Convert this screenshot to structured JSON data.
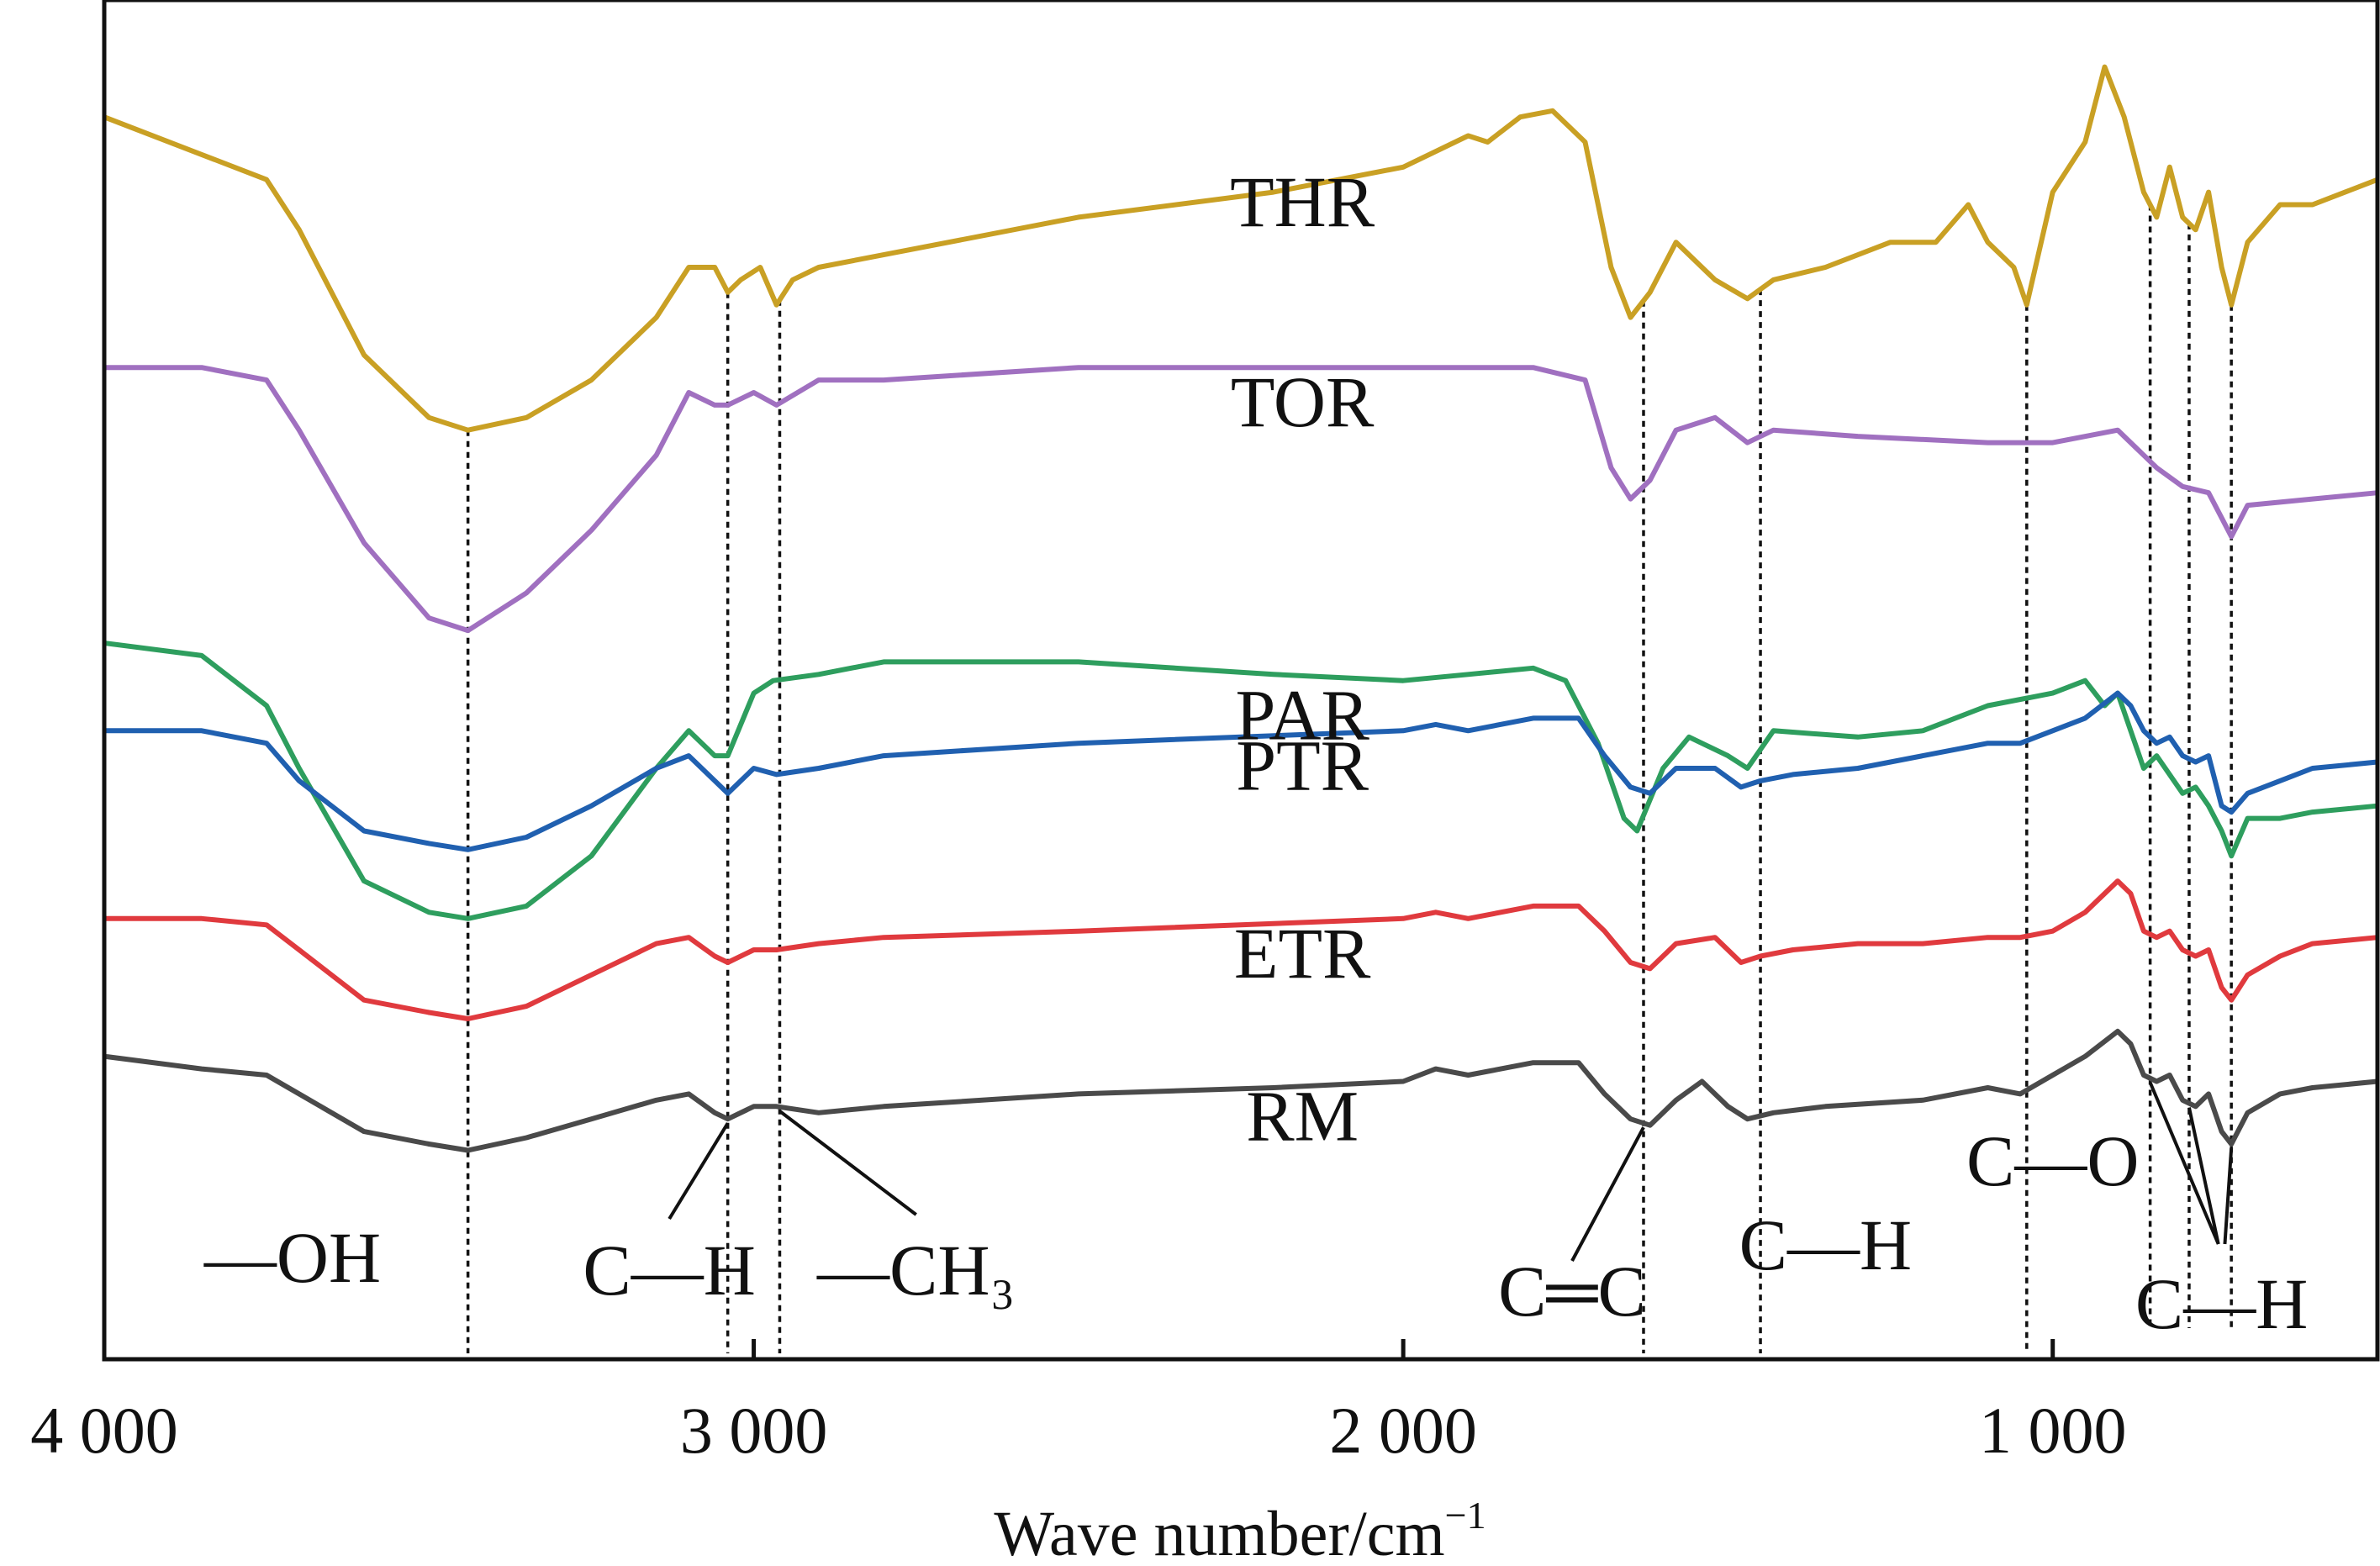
{
  "chart_data": {
    "type": "line",
    "title": "",
    "xlabel": "Wave number/cm",
    "xlabel_sup": "−1",
    "ylabel": "",
    "xlim": [
      4000,
      500
    ],
    "x_reversed": true,
    "y_axis_ticks_shown": false,
    "grid": false,
    "legend": "none — series names printed next to each curve",
    "x_ticks": [
      {
        "value": 4000,
        "label": "4 000"
      },
      {
        "value": 3000,
        "label": "3 000"
      },
      {
        "value": 2000,
        "label": "2 000"
      },
      {
        "value": 1000,
        "label": "1 000"
      }
    ],
    "series": [
      {
        "name": "THR",
        "color": "#C9A024",
        "points": [
          [
            4000,
            0.92
          ],
          [
            3850,
            0.89
          ],
          [
            3750,
            0.87
          ],
          [
            3700,
            0.83
          ],
          [
            3600,
            0.73
          ],
          [
            3500,
            0.68
          ],
          [
            3440,
            0.67
          ],
          [
            3350,
            0.68
          ],
          [
            3250,
            0.71
          ],
          [
            3150,
            0.76
          ],
          [
            3100,
            0.8
          ],
          [
            3060,
            0.8
          ],
          [
            3040,
            0.78
          ],
          [
            3020,
            0.79
          ],
          [
            2990,
            0.8
          ],
          [
            2965,
            0.77
          ],
          [
            2940,
            0.79
          ],
          [
            2900,
            0.8
          ],
          [
            2800,
            0.81
          ],
          [
            2500,
            0.84
          ],
          [
            2200,
            0.86
          ],
          [
            2000,
            0.88
          ],
          [
            1900,
            0.905
          ],
          [
            1870,
            0.9
          ],
          [
            1820,
            0.92
          ],
          [
            1770,
            0.925
          ],
          [
            1720,
            0.9
          ],
          [
            1680,
            0.8
          ],
          [
            1650,
            0.76
          ],
          [
            1620,
            0.78
          ],
          [
            1580,
            0.82
          ],
          [
            1520,
            0.79
          ],
          [
            1470,
            0.775
          ],
          [
            1430,
            0.79
          ],
          [
            1350,
            0.8
          ],
          [
            1250,
            0.82
          ],
          [
            1180,
            0.82
          ],
          [
            1130,
            0.85
          ],
          [
            1100,
            0.82
          ],
          [
            1060,
            0.8
          ],
          [
            1040,
            0.77
          ],
          [
            1000,
            0.86
          ],
          [
            950,
            0.9
          ],
          [
            920,
            0.96
          ],
          [
            890,
            0.92
          ],
          [
            860,
            0.86
          ],
          [
            840,
            0.84
          ],
          [
            820,
            0.88
          ],
          [
            800,
            0.84
          ],
          [
            780,
            0.83
          ],
          [
            760,
            0.86
          ],
          [
            740,
            0.8
          ],
          [
            725,
            0.77
          ],
          [
            700,
            0.82
          ],
          [
            650,
            0.85
          ],
          [
            600,
            0.85
          ],
          [
            550,
            0.86
          ],
          [
            500,
            0.87
          ]
        ]
      },
      {
        "name": "TOR",
        "color": "#A070C0",
        "points": [
          [
            4000,
            0.72
          ],
          [
            3850,
            0.72
          ],
          [
            3750,
            0.71
          ],
          [
            3700,
            0.67
          ],
          [
            3600,
            0.58
          ],
          [
            3500,
            0.52
          ],
          [
            3440,
            0.51
          ],
          [
            3350,
            0.54
          ],
          [
            3250,
            0.59
          ],
          [
            3150,
            0.65
          ],
          [
            3100,
            0.7
          ],
          [
            3060,
            0.69
          ],
          [
            3040,
            0.69
          ],
          [
            3000,
            0.7
          ],
          [
            2965,
            0.69
          ],
          [
            2900,
            0.71
          ],
          [
            2800,
            0.71
          ],
          [
            2500,
            0.72
          ],
          [
            2000,
            0.72
          ],
          [
            1800,
            0.72
          ],
          [
            1720,
            0.71
          ],
          [
            1680,
            0.64
          ],
          [
            1650,
            0.615
          ],
          [
            1620,
            0.63
          ],
          [
            1580,
            0.67
          ],
          [
            1520,
            0.68
          ],
          [
            1470,
            0.66
          ],
          [
            1430,
            0.67
          ],
          [
            1300,
            0.665
          ],
          [
            1100,
            0.66
          ],
          [
            1000,
            0.66
          ],
          [
            900,
            0.67
          ],
          [
            860,
            0.65
          ],
          [
            840,
            0.64
          ],
          [
            800,
            0.625
          ],
          [
            760,
            0.62
          ],
          [
            740,
            0.6
          ],
          [
            725,
            0.585
          ],
          [
            700,
            0.61
          ],
          [
            600,
            0.615
          ],
          [
            500,
            0.62
          ]
        ]
      },
      {
        "name": "PAR",
        "color": "#2E9E5E",
        "points": [
          [
            4000,
            0.5
          ],
          [
            3850,
            0.49
          ],
          [
            3750,
            0.45
          ],
          [
            3700,
            0.4
          ],
          [
            3600,
            0.31
          ],
          [
            3500,
            0.285
          ],
          [
            3440,
            0.28
          ],
          [
            3350,
            0.29
          ],
          [
            3250,
            0.33
          ],
          [
            3150,
            0.4
          ],
          [
            3100,
            0.43
          ],
          [
            3060,
            0.41
          ],
          [
            3040,
            0.41
          ],
          [
            3000,
            0.46
          ],
          [
            2970,
            0.47
          ],
          [
            2900,
            0.475
          ],
          [
            2800,
            0.485
          ],
          [
            2500,
            0.485
          ],
          [
            2200,
            0.475
          ],
          [
            2000,
            0.47
          ],
          [
            1900,
            0.475
          ],
          [
            1800,
            0.48
          ],
          [
            1750,
            0.47
          ],
          [
            1700,
            0.42
          ],
          [
            1660,
            0.36
          ],
          [
            1640,
            0.35
          ],
          [
            1600,
            0.4
          ],
          [
            1560,
            0.425
          ],
          [
            1500,
            0.41
          ],
          [
            1470,
            0.4
          ],
          [
            1430,
            0.43
          ],
          [
            1300,
            0.425
          ],
          [
            1200,
            0.43
          ],
          [
            1100,
            0.45
          ],
          [
            1000,
            0.46
          ],
          [
            950,
            0.47
          ],
          [
            920,
            0.45
          ],
          [
            900,
            0.46
          ],
          [
            860,
            0.4
          ],
          [
            840,
            0.41
          ],
          [
            800,
            0.38
          ],
          [
            780,
            0.385
          ],
          [
            760,
            0.37
          ],
          [
            740,
            0.35
          ],
          [
            725,
            0.33
          ],
          [
            700,
            0.36
          ],
          [
            650,
            0.36
          ],
          [
            600,
            0.365
          ],
          [
            500,
            0.37
          ]
        ]
      },
      {
        "name": "PTR",
        "color": "#2060B0",
        "points": [
          [
            4000,
            0.43
          ],
          [
            3850,
            0.43
          ],
          [
            3750,
            0.42
          ],
          [
            3700,
            0.39
          ],
          [
            3600,
            0.35
          ],
          [
            3500,
            0.34
          ],
          [
            3440,
            0.335
          ],
          [
            3350,
            0.345
          ],
          [
            3250,
            0.37
          ],
          [
            3150,
            0.4
          ],
          [
            3100,
            0.41
          ],
          [
            3060,
            0.39
          ],
          [
            3040,
            0.38
          ],
          [
            3000,
            0.4
          ],
          [
            2965,
            0.395
          ],
          [
            2900,
            0.4
          ],
          [
            2800,
            0.41
          ],
          [
            2500,
            0.42
          ],
          [
            2000,
            0.43
          ],
          [
            1950,
            0.435
          ],
          [
            1900,
            0.43
          ],
          [
            1800,
            0.44
          ],
          [
            1730,
            0.44
          ],
          [
            1690,
            0.41
          ],
          [
            1650,
            0.385
          ],
          [
            1620,
            0.38
          ],
          [
            1580,
            0.4
          ],
          [
            1520,
            0.4
          ],
          [
            1480,
            0.385
          ],
          [
            1450,
            0.39
          ],
          [
            1400,
            0.395
          ],
          [
            1300,
            0.4
          ],
          [
            1200,
            0.41
          ],
          [
            1100,
            0.42
          ],
          [
            1050,
            0.42
          ],
          [
            1000,
            0.43
          ],
          [
            950,
            0.44
          ],
          [
            900,
            0.46
          ],
          [
            880,
            0.45
          ],
          [
            860,
            0.43
          ],
          [
            840,
            0.42
          ],
          [
            820,
            0.425
          ],
          [
            800,
            0.41
          ],
          [
            780,
            0.405
          ],
          [
            760,
            0.41
          ],
          [
            740,
            0.37
          ],
          [
            725,
            0.365
          ],
          [
            700,
            0.38
          ],
          [
            650,
            0.39
          ],
          [
            600,
            0.4
          ],
          [
            500,
            0.405
          ]
        ]
      },
      {
        "name": "ETR",
        "color": "#E03A3E",
        "points": [
          [
            4000,
            0.28
          ],
          [
            3850,
            0.28
          ],
          [
            3750,
            0.275
          ],
          [
            3700,
            0.255
          ],
          [
            3600,
            0.215
          ],
          [
            3500,
            0.205
          ],
          [
            3440,
            0.2
          ],
          [
            3350,
            0.21
          ],
          [
            3250,
            0.235
          ],
          [
            3150,
            0.26
          ],
          [
            3100,
            0.265
          ],
          [
            3060,
            0.25
          ],
          [
            3040,
            0.245
          ],
          [
            3000,
            0.255
          ],
          [
            2965,
            0.255
          ],
          [
            2900,
            0.26
          ],
          [
            2800,
            0.265
          ],
          [
            2500,
            0.27
          ],
          [
            2000,
            0.28
          ],
          [
            1950,
            0.285
          ],
          [
            1900,
            0.28
          ],
          [
            1800,
            0.29
          ],
          [
            1730,
            0.29
          ],
          [
            1690,
            0.27
          ],
          [
            1650,
            0.245
          ],
          [
            1620,
            0.24
          ],
          [
            1580,
            0.26
          ],
          [
            1520,
            0.265
          ],
          [
            1480,
            0.245
          ],
          [
            1450,
            0.25
          ],
          [
            1400,
            0.255
          ],
          [
            1300,
            0.26
          ],
          [
            1200,
            0.26
          ],
          [
            1100,
            0.265
          ],
          [
            1050,
            0.265
          ],
          [
            1000,
            0.27
          ],
          [
            950,
            0.285
          ],
          [
            900,
            0.31
          ],
          [
            880,
            0.3
          ],
          [
            860,
            0.27
          ],
          [
            840,
            0.265
          ],
          [
            820,
            0.27
          ],
          [
            800,
            0.255
          ],
          [
            780,
            0.25
          ],
          [
            760,
            0.255
          ],
          [
            740,
            0.225
          ],
          [
            725,
            0.215
          ],
          [
            700,
            0.235
          ],
          [
            650,
            0.25
          ],
          [
            600,
            0.26
          ],
          [
            500,
            0.265
          ]
        ]
      },
      {
        "name": "RM",
        "color": "#4A4A4A",
        "points": [
          [
            4000,
            0.17
          ],
          [
            3850,
            0.16
          ],
          [
            3750,
            0.155
          ],
          [
            3700,
            0.14
          ],
          [
            3600,
            0.11
          ],
          [
            3500,
            0.1
          ],
          [
            3440,
            0.095
          ],
          [
            3350,
            0.105
          ],
          [
            3250,
            0.12
          ],
          [
            3150,
            0.135
          ],
          [
            3100,
            0.14
          ],
          [
            3060,
            0.125
          ],
          [
            3040,
            0.12
          ],
          [
            3000,
            0.13
          ],
          [
            2965,
            0.13
          ],
          [
            2900,
            0.125
          ],
          [
            2800,
            0.13
          ],
          [
            2500,
            0.14
          ],
          [
            2200,
            0.145
          ],
          [
            2000,
            0.15
          ],
          [
            1950,
            0.16
          ],
          [
            1900,
            0.155
          ],
          [
            1800,
            0.165
          ],
          [
            1730,
            0.165
          ],
          [
            1690,
            0.14
          ],
          [
            1650,
            0.12
          ],
          [
            1620,
            0.115
          ],
          [
            1580,
            0.135
          ],
          [
            1540,
            0.15
          ],
          [
            1500,
            0.13
          ],
          [
            1470,
            0.12
          ],
          [
            1430,
            0.125
          ],
          [
            1350,
            0.13
          ],
          [
            1200,
            0.135
          ],
          [
            1100,
            0.145
          ],
          [
            1050,
            0.14
          ],
          [
            1000,
            0.155
          ],
          [
            950,
            0.17
          ],
          [
            900,
            0.19
          ],
          [
            880,
            0.18
          ],
          [
            860,
            0.155
          ],
          [
            840,
            0.15
          ],
          [
            820,
            0.155
          ],
          [
            800,
            0.135
          ],
          [
            780,
            0.13
          ],
          [
            760,
            0.14
          ],
          [
            740,
            0.11
          ],
          [
            725,
            0.1
          ],
          [
            700,
            0.125
          ],
          [
            650,
            0.14
          ],
          [
            600,
            0.145
          ],
          [
            500,
            0.15
          ]
        ]
      }
    ],
    "reference_lines": [
      3440,
      3040,
      2960,
      1630,
      1450,
      1040,
      850,
      790,
      725
    ],
    "annotations": [
      {
        "text": "—OH",
        "x": 3710
      },
      {
        "text": "C—H",
        "x": 3130
      },
      {
        "text": "—CH₃",
        "x": 2750
      },
      {
        "text": "C═C",
        "x": 1740
      },
      {
        "text": "C—H",
        "x": 1350
      },
      {
        "text": "C—O",
        "x": 1000
      },
      {
        "text": "C—H",
        "x": 740
      }
    ]
  }
}
